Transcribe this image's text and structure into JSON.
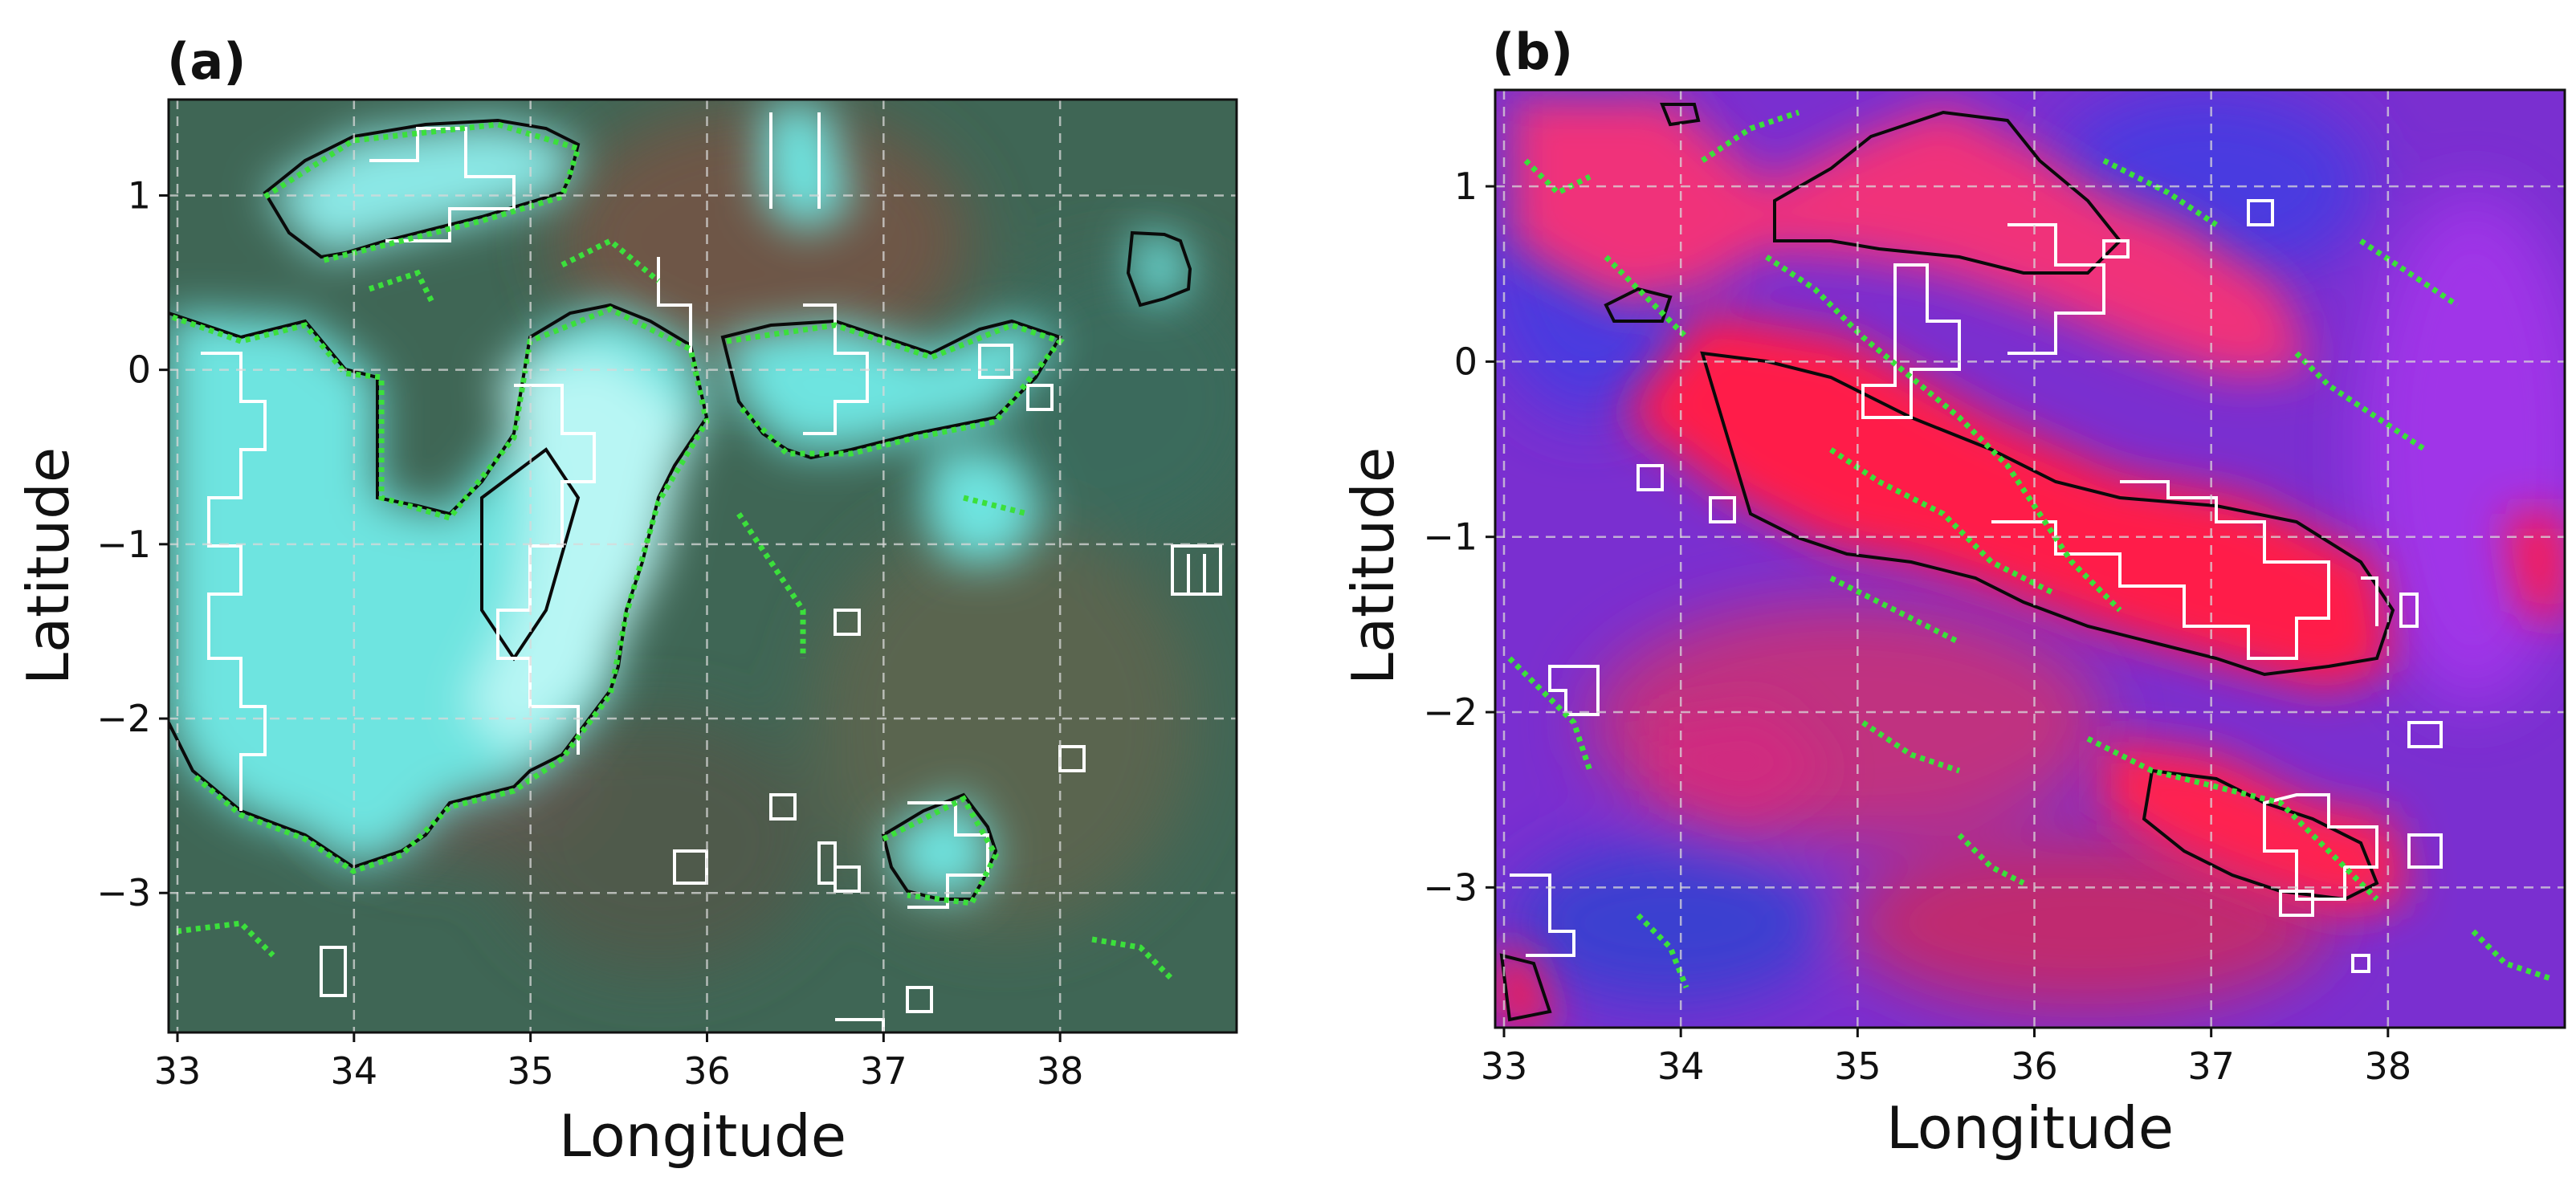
{
  "figure": {
    "panels": [
      {
        "id": "a",
        "label": "(a)",
        "xlabel": "Longitude",
        "ylabel": "Latitude",
        "xlim": [
          32.95,
          39.0
        ],
        "ylim": [
          -3.8,
          1.55
        ],
        "xticks": [
          "33",
          "34",
          "35",
          "36",
          "37",
          "38"
        ],
        "yticks": [
          "1",
          "0",
          "−1",
          "−2",
          "−3"
        ],
        "colors": {
          "background": "#3f6655",
          "background_alt": "#6b5c48",
          "cloud_fill": "#6ee4e0",
          "cloud_core": "#b8f6f4",
          "black_contour": "#0a0a0a",
          "white_grid_mask": "#ffffff",
          "green_points": "#3be03b"
        }
      },
      {
        "id": "b",
        "label": "(b)",
        "xlabel": "Longitude",
        "ylabel": "Latitude",
        "xlim": [
          32.95,
          39.0
        ],
        "ylim": [
          -3.8,
          1.55
        ],
        "xticks": [
          "33",
          "34",
          "35",
          "36",
          "37",
          "38"
        ],
        "yticks": [
          "1",
          "0",
          "−1",
          "−2",
          "−3"
        ],
        "colors": {
          "background": "#7a2fd0",
          "background_alt": "#4a3be0",
          "cloud_fill": "#f0306a",
          "cloud_core": "#ff1e4a",
          "black_contour": "#0a0a0a",
          "white_grid_mask": "#ffffff",
          "green_points": "#3be03b"
        }
      }
    ]
  },
  "chart_data": [
    {
      "type": "heatmap",
      "title": "(a)",
      "xlabel": "Longitude",
      "ylabel": "Latitude",
      "xlim": [
        32.95,
        39.0
      ],
      "ylim": [
        -3.8,
        1.55
      ],
      "xticks": [
        33,
        34,
        35,
        36,
        37,
        38
      ],
      "yticks": [
        1,
        0,
        -1,
        -2,
        -3
      ],
      "grid": true,
      "description_layers": [
        "RGB composite image",
        "black detection contour",
        "white pixel-mask contour",
        "green point detections"
      ]
    },
    {
      "type": "heatmap",
      "title": "(b)",
      "xlabel": "Longitude",
      "ylabel": "Latitude",
      "xlim": [
        32.95,
        39.0
      ],
      "ylim": [
        -3.8,
        1.55
      ],
      "xticks": [
        33,
        34,
        35,
        36,
        37,
        38
      ],
      "yticks": [
        1,
        0,
        -1,
        -2,
        -3
      ],
      "grid": true,
      "description_layers": [
        "RGB composite image",
        "black detection contour",
        "white pixel-mask contour",
        "green point detections"
      ]
    }
  ]
}
